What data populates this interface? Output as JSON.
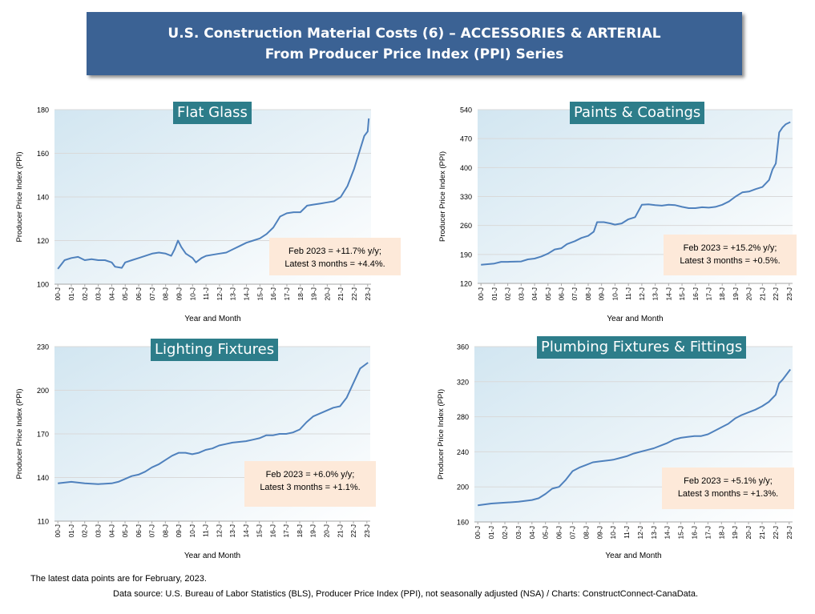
{
  "header": {
    "title_line1": "U.S. Construction Material Costs (6) – ACCESSORIES & ARTERIAL",
    "title_line2": "From Producer Price Index (PPI) Series"
  },
  "footer": {
    "note": "The latest data points are for February, 2023.",
    "source": "Data source: U.S. Bureau of Labor Statistics (BLS), Producer Price Index (PPI), not seasonally adjusted (NSA) / Charts: ConstructConnect-CanaData."
  },
  "colors": {
    "line": "#4f81bd",
    "title_bg": "#2d7d8a",
    "annotation_bg": "#fde9d9",
    "banner_bg": "#3b6294"
  },
  "chart_data": [
    {
      "type": "line",
      "title": "Flat Glass",
      "xlabel": "Year and Month",
      "ylabel": "Producer Price Index (PPI)",
      "ylim": [
        100,
        180
      ],
      "yticks": [
        100,
        120,
        140,
        160,
        180
      ],
      "x_ticks": [
        "00-J",
        "01-J",
        "02-J",
        "03-J",
        "04-J",
        "05-J",
        "06-J",
        "07-J",
        "08-J",
        "09-J",
        "10-J",
        "11-J",
        "12-J",
        "13-J",
        "14-J",
        "15-J",
        "16-J",
        "17-J",
        "18-J",
        "19-J",
        "20-J",
        "21-J",
        "22-J",
        "23-J"
      ],
      "annotation": [
        "Feb 2023 = +11.7% y/y;",
        "Latest 3 months = +4.4%."
      ],
      "series": [
        {
          "points": [
            [
              "2000-01",
              107
            ],
            [
              "2000-07",
              111
            ],
            [
              "2001-01",
              112
            ],
            [
              "2001-07",
              112.5
            ],
            [
              "2002-01",
              111
            ],
            [
              "2002-07",
              111.5
            ],
            [
              "2003-01",
              111
            ],
            [
              "2003-07",
              111
            ],
            [
              "2004-01",
              110
            ],
            [
              "2004-04",
              108
            ],
            [
              "2004-10",
              107.5
            ],
            [
              "2005-01",
              110
            ],
            [
              "2005-07",
              111
            ],
            [
              "2006-01",
              112
            ],
            [
              "2006-07",
              113
            ],
            [
              "2007-01",
              114
            ],
            [
              "2007-07",
              114.5
            ],
            [
              "2008-01",
              114
            ],
            [
              "2008-06",
              113
            ],
            [
              "2008-09",
              116
            ],
            [
              "2008-12",
              120
            ],
            [
              "2009-03",
              117
            ],
            [
              "2009-07",
              114
            ],
            [
              "2010-01",
              112
            ],
            [
              "2010-04",
              110
            ],
            [
              "2010-09",
              112
            ],
            [
              "2011-01",
              113
            ],
            [
              "2011-07",
              113.5
            ],
            [
              "2012-01",
              114
            ],
            [
              "2012-07",
              114.5
            ],
            [
              "2013-01",
              116
            ],
            [
              "2013-07",
              117.5
            ],
            [
              "2014-01",
              119
            ],
            [
              "2014-07",
              120
            ],
            [
              "2015-01",
              121
            ],
            [
              "2015-07",
              123
            ],
            [
              "2016-01",
              126
            ],
            [
              "2016-07",
              131
            ],
            [
              "2017-01",
              132.5
            ],
            [
              "2017-07",
              133
            ],
            [
              "2018-01",
              133
            ],
            [
              "2018-07",
              136
            ],
            [
              "2019-01",
              136.5
            ],
            [
              "2019-07",
              137
            ],
            [
              "2020-01",
              137.5
            ],
            [
              "2020-07",
              138
            ],
            [
              "2021-01",
              140
            ],
            [
              "2021-07",
              145
            ],
            [
              "2022-01",
              153
            ],
            [
              "2022-04",
              158
            ],
            [
              "2022-07",
              163
            ],
            [
              "2022-10",
              168
            ],
            [
              "2023-01",
              170
            ],
            [
              "2023-02",
              176
            ]
          ]
        }
      ]
    },
    {
      "type": "line",
      "title": "Paints & Coatings",
      "xlabel": "Year and Month",
      "ylabel": "Producer Price Index (PPI)",
      "ylim": [
        120,
        540
      ],
      "yticks": [
        120,
        190,
        260,
        330,
        400,
        470,
        540
      ],
      "x_ticks": [
        "00-J",
        "01-J",
        "02-J",
        "03-J",
        "04-J",
        "05-J",
        "06-J",
        "07-J",
        "08-J",
        "09-J",
        "10-J",
        "11-J",
        "12-J",
        "13-J",
        "14-J",
        "15-J",
        "16-J",
        "17-J",
        "18-J",
        "19-J",
        "20-J",
        "21-J",
        "22-J",
        "23-J"
      ],
      "annotation": [
        "Feb 2023 = +15.2% y/y;",
        "Latest 3 months = +0.5%."
      ],
      "series": [
        {
          "points": [
            [
              "2000-01",
              165
            ],
            [
              "2001-01",
              168
            ],
            [
              "2001-07",
              172
            ],
            [
              "2002-01",
              172
            ],
            [
              "2003-01",
              173
            ],
            [
              "2003-07",
              178
            ],
            [
              "2004-01",
              180
            ],
            [
              "2004-07",
              185
            ],
            [
              "2005-01",
              192
            ],
            [
              "2005-07",
              202
            ],
            [
              "2006-01",
              205
            ],
            [
              "2006-06",
              215
            ],
            [
              "2007-01",
              222
            ],
            [
              "2007-07",
              230
            ],
            [
              "2008-01",
              235
            ],
            [
              "2008-06",
              245
            ],
            [
              "2008-09",
              268
            ],
            [
              "2009-03",
              268
            ],
            [
              "2009-09",
              265
            ],
            [
              "2010-01",
              262
            ],
            [
              "2010-07",
              265
            ],
            [
              "2011-01",
              275
            ],
            [
              "2011-07",
              280
            ],
            [
              "2012-01",
              310
            ],
            [
              "2012-07",
              311
            ],
            [
              "2013-01",
              309
            ],
            [
              "2013-07",
              308
            ],
            [
              "2014-01",
              310
            ],
            [
              "2014-07",
              309
            ],
            [
              "2015-01",
              305
            ],
            [
              "2015-07",
              302
            ],
            [
              "2016-01",
              302
            ],
            [
              "2016-07",
              304
            ],
            [
              "2017-01",
              303
            ],
            [
              "2017-07",
              305
            ],
            [
              "2018-01",
              310
            ],
            [
              "2018-07",
              318
            ],
            [
              "2019-01",
              330
            ],
            [
              "2019-07",
              340
            ],
            [
              "2020-01",
              342
            ],
            [
              "2020-07",
              348
            ],
            [
              "2021-01",
              353
            ],
            [
              "2021-07",
              370
            ],
            [
              "2021-10",
              395
            ],
            [
              "2022-01",
              410
            ],
            [
              "2022-04",
              485
            ],
            [
              "2022-07",
              497
            ],
            [
              "2022-10",
              505
            ],
            [
              "2023-02",
              510
            ]
          ]
        }
      ]
    },
    {
      "type": "line",
      "title": "Lighting Fixtures",
      "xlabel": "Year and Month",
      "ylabel": "Producer Price Index (PPI)",
      "ylim": [
        110,
        230
      ],
      "yticks": [
        110,
        140,
        170,
        200,
        230
      ],
      "x_ticks": [
        "00-J",
        "01-J",
        "02-J",
        "03-J",
        "04-J",
        "05-J",
        "06-J",
        "07-J",
        "08-J",
        "09-J",
        "10-J",
        "11-J",
        "12-J",
        "13-J",
        "14-J",
        "15-J",
        "16-J",
        "17-J",
        "18-J",
        "19-J",
        "20-J",
        "21-J",
        "22-J",
        "23-J"
      ],
      "annotation": [
        "Feb 2023 = +6.0% y/y;",
        "Latest 3 months = +1.1%."
      ],
      "series": [
        {
          "points": [
            [
              "2000-01",
              136
            ],
            [
              "2001-01",
              137
            ],
            [
              "2002-01",
              136
            ],
            [
              "2003-01",
              135.5
            ],
            [
              "2004-01",
              136
            ],
            [
              "2004-07",
              137
            ],
            [
              "2005-01",
              139
            ],
            [
              "2005-07",
              141
            ],
            [
              "2006-01",
              142
            ],
            [
              "2006-07",
              144
            ],
            [
              "2007-01",
              147
            ],
            [
              "2007-07",
              149
            ],
            [
              "2008-01",
              152
            ],
            [
              "2008-07",
              155
            ],
            [
              "2009-01",
              157
            ],
            [
              "2009-07",
              157
            ],
            [
              "2010-01",
              156
            ],
            [
              "2010-07",
              157
            ],
            [
              "2011-01",
              159
            ],
            [
              "2011-07",
              160
            ],
            [
              "2012-01",
              162
            ],
            [
              "2012-07",
              163
            ],
            [
              "2013-01",
              164
            ],
            [
              "2013-07",
              164.5
            ],
            [
              "2014-01",
              165
            ],
            [
              "2014-07",
              166
            ],
            [
              "2015-01",
              167
            ],
            [
              "2015-07",
              169
            ],
            [
              "2016-01",
              169
            ],
            [
              "2016-07",
              170
            ],
            [
              "2017-01",
              170
            ],
            [
              "2017-07",
              171
            ],
            [
              "2018-01",
              173
            ],
            [
              "2018-07",
              178
            ],
            [
              "2019-01",
              182
            ],
            [
              "2019-07",
              184
            ],
            [
              "2020-01",
              186
            ],
            [
              "2020-07",
              188
            ],
            [
              "2021-01",
              189
            ],
            [
              "2021-07",
              195
            ],
            [
              "2022-01",
              205
            ],
            [
              "2022-07",
              215
            ],
            [
              "2023-02",
              219
            ]
          ]
        }
      ]
    },
    {
      "type": "line",
      "title": "Plumbing Fixtures & Fittings",
      "xlabel": "Year and Month",
      "ylabel": "Producer Price Index (PPI)",
      "ylim": [
        160,
        360
      ],
      "yticks": [
        160,
        200,
        240,
        280,
        320,
        360
      ],
      "x_ticks": [
        "00-J",
        "01-J",
        "02-J",
        "03-J",
        "04-J",
        "05-J",
        "06-J",
        "07-J",
        "08-J",
        "09-J",
        "10-J",
        "11-J",
        "12-J",
        "13-J",
        "14-J",
        "15-J",
        "16-J",
        "17-J",
        "18-J",
        "19-J",
        "20-J",
        "21-J",
        "22-J",
        "23-J"
      ],
      "annotation": [
        "Feb 2023 = +5.1% y/y;",
        "Latest 3 months = +1.3%."
      ],
      "series": [
        {
          "points": [
            [
              "2000-01",
              179
            ],
            [
              "2001-01",
              181
            ],
            [
              "2002-01",
              182
            ],
            [
              "2003-01",
              183
            ],
            [
              "2004-01",
              185
            ],
            [
              "2004-07",
              187
            ],
            [
              "2005-01",
              192
            ],
            [
              "2005-07",
              198
            ],
            [
              "2006-01",
              200
            ],
            [
              "2006-07",
              208
            ],
            [
              "2007-01",
              218
            ],
            [
              "2007-07",
              222
            ],
            [
              "2008-01",
              225
            ],
            [
              "2008-07",
              228
            ],
            [
              "2009-01",
              229
            ],
            [
              "2009-07",
              230
            ],
            [
              "2010-01",
              231
            ],
            [
              "2010-07",
              233
            ],
            [
              "2011-01",
              235
            ],
            [
              "2011-07",
              238
            ],
            [
              "2012-01",
              240
            ],
            [
              "2012-07",
              242
            ],
            [
              "2013-01",
              244
            ],
            [
              "2013-07",
              247
            ],
            [
              "2014-01",
              250
            ],
            [
              "2014-07",
              254
            ],
            [
              "2015-01",
              256
            ],
            [
              "2015-07",
              257
            ],
            [
              "2016-01",
              258
            ],
            [
              "2016-07",
              258
            ],
            [
              "2017-01",
              260
            ],
            [
              "2017-07",
              264
            ],
            [
              "2018-01",
              268
            ],
            [
              "2018-07",
              272
            ],
            [
              "2019-01",
              278
            ],
            [
              "2019-07",
              282
            ],
            [
              "2020-01",
              285
            ],
            [
              "2020-07",
              288
            ],
            [
              "2021-01",
              292
            ],
            [
              "2021-07",
              297
            ],
            [
              "2022-01",
              305
            ],
            [
              "2022-04",
              318
            ],
            [
              "2022-07",
              322
            ],
            [
              "2023-02",
              334
            ]
          ]
        }
      ]
    }
  ]
}
